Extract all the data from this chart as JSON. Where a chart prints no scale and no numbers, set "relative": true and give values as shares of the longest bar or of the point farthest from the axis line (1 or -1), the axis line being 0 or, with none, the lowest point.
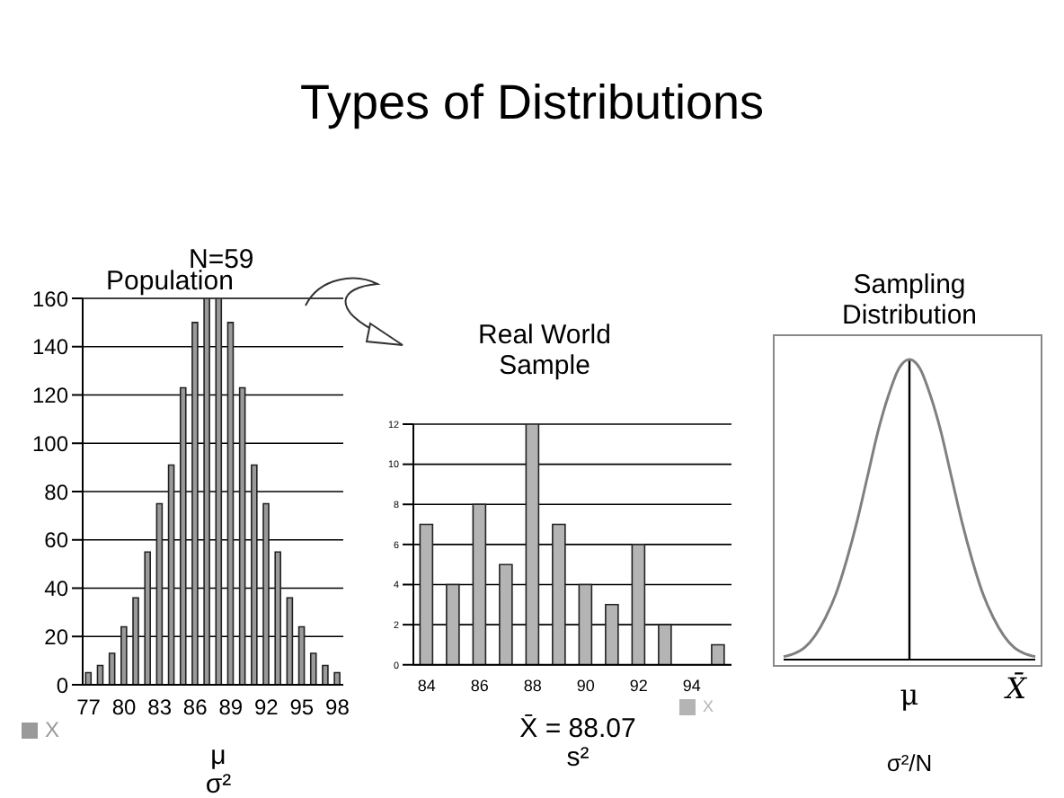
{
  "chart_data": [
    {
      "type": "bar",
      "title": "Types of Distributions",
      "subtitle": "Population",
      "categories": [
        "77",
        null,
        null,
        "80",
        null,
        null,
        "83",
        null,
        null,
        "86",
        null,
        null,
        "89",
        null,
        null,
        "92",
        null,
        null,
        "95",
        null,
        null,
        "98"
      ],
      "series": [
        {
          "name": "X",
          "color": "#9a9a9a",
          "values": [
            5,
            8,
            13,
            24,
            36,
            55,
            75,
            91,
            123,
            150,
            160,
            160,
            150,
            123,
            91,
            75,
            55,
            36,
            24,
            13,
            8,
            5
          ]
        }
      ],
      "ylim": [
        0,
        160
      ],
      "yticks": [
        0,
        20,
        40,
        60,
        80,
        100,
        120,
        140,
        160
      ],
      "grid": "y",
      "legend": "bottom left",
      "annotations": [
        "N=59",
        "μ",
        "σ²"
      ]
    },
    {
      "type": "bar",
      "title": "Real World Sample",
      "categories": [
        "84",
        null,
        "86",
        null,
        "88",
        null,
        "90",
        null,
        "92",
        null,
        "94",
        null
      ],
      "series": [
        {
          "name": "X",
          "color": "#b4b4b4",
          "values": [
            7,
            4,
            8,
            5,
            12,
            7,
            4,
            3,
            6,
            2,
            0,
            1
          ]
        }
      ],
      "ylim": [
        0,
        12
      ],
      "yticks": [
        0,
        2,
        4,
        6,
        8,
        10,
        12
      ],
      "grid": "y",
      "legend": "bottom right",
      "annotations": [
        "X̄ = 88.07",
        "s²"
      ]
    },
    {
      "type": "line",
      "title": "Sampling Distribution",
      "relative": true,
      "xlabel": "X̄",
      "categories": [
        null,
        null,
        null,
        null,
        null,
        null,
        null,
        null,
        null,
        null,
        null,
        null,
        null,
        null,
        null,
        null,
        null,
        null,
        null,
        null,
        null,
        null,
        null,
        null,
        null
      ],
      "series": [
        {
          "color": "#808080",
          "values": [
            0.01,
            0.02,
            0.04,
            0.08,
            0.14,
            0.22,
            0.33,
            0.46,
            0.61,
            0.76,
            0.88,
            0.97,
            1,
            0.97,
            0.88,
            0.76,
            0.61,
            0.46,
            0.33,
            0.22,
            0.14,
            0.08,
            0.04,
            0.02,
            0.01
          ]
        }
      ],
      "marker": "none",
      "annotations": [
        "μ",
        "σ²/N"
      ]
    }
  ]
}
